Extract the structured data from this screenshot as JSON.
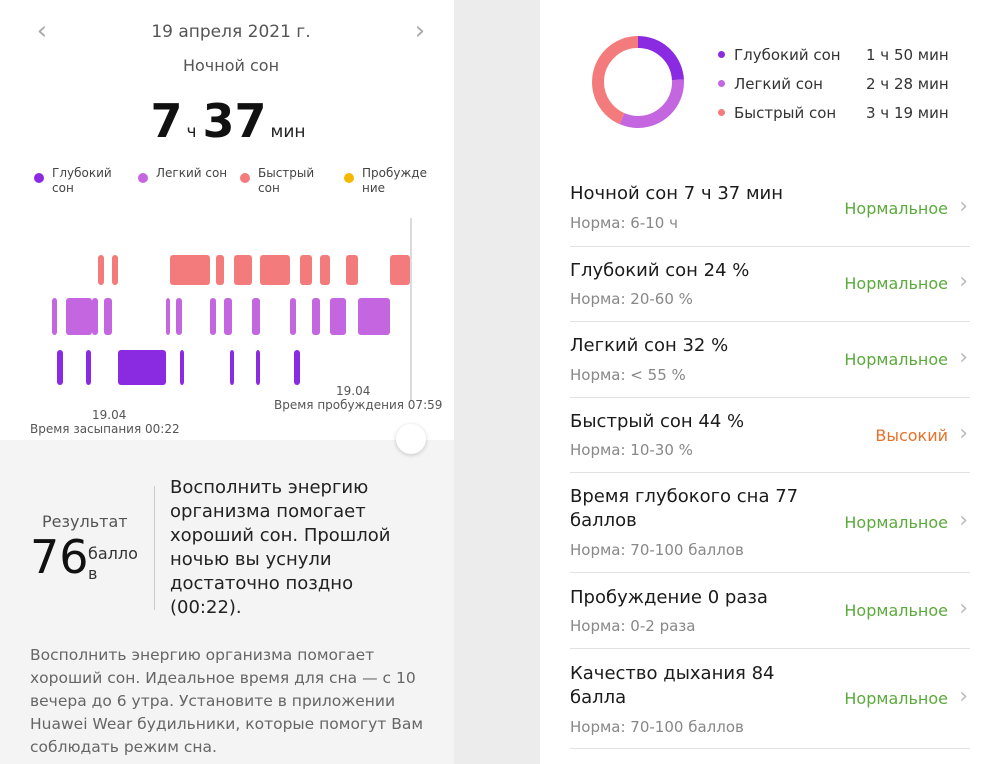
{
  "header": {
    "date": "19 апреля 2021 г.",
    "title": "Ночной сон",
    "hours": "7",
    "hours_unit": "ч",
    "minutes": "37",
    "minutes_unit": "мин"
  },
  "legend": [
    {
      "label": "Глубокий сон",
      "color": "#8a2be2"
    },
    {
      "label": "Легкий сон",
      "color": "#c466e0"
    },
    {
      "label": "Быстрый сон",
      "color": "#f47b7b"
    },
    {
      "label": "Пробужде ние",
      "color": "#f5b800"
    }
  ],
  "chart": {
    "sleep_date": "19.04",
    "sleep_label": "Время засыпания 00:22",
    "wake_date": "19.04",
    "wake_label": "Время пробуждения 07:59"
  },
  "score": {
    "label": "Результат",
    "value": "76",
    "unit": "балло в",
    "text": "Восполнить энергию организма помогает хороший сон. Прошлой ночью вы уснули достаточно поздно (00:22).",
    "advice": "Восполнить энергию организма помогает хороший сон. Идеальное время для сна — с 10 вечера до 6 утра. Установите в приложении Huawei Wear будильники, которые помогут Вам соблюдать режим сна."
  },
  "phases": [
    {
      "name": "Глубокий сон",
      "value": "1 ч 50 мин",
      "color": "#8a2be2"
    },
    {
      "name": "Легкий сон",
      "value": "2 ч 28 мин",
      "color": "#c466e0"
    },
    {
      "name": "Быстрый сон",
      "value": "3 ч 19 мин",
      "color": "#f47b7b"
    }
  ],
  "metrics": [
    {
      "name": "Ночной сон  7 ч 37 мин",
      "norm": "Норма: 6-10 ч",
      "status": "Нормальное",
      "status_color": "#5aaa3c"
    },
    {
      "name": "Глубокий сон  24 %",
      "norm": "Норма: 20-60 %",
      "status": "Нормальное",
      "status_color": "#5aaa3c"
    },
    {
      "name": "Легкий сон  32 %",
      "norm": "Норма: < 55 %",
      "status": "Нормальное",
      "status_color": "#5aaa3c"
    },
    {
      "name": "Быстрый сон  44 %",
      "norm": "Норма: 10-30 %",
      "status": "Высокий",
      "status_color": "#e8722a"
    },
    {
      "name": "Время глубокого сна  77 баллов",
      "norm": "Норма: 70-100 баллов",
      "status": "Нормальное",
      "status_color": "#5aaa3c"
    },
    {
      "name": "Пробуждение  0 раза",
      "norm": "Норма: 0-2 раза",
      "status": "Нормальное",
      "status_color": "#5aaa3c"
    },
    {
      "name": "Качество дыхания  84 балла",
      "norm": "Норма: 70-100 баллов",
      "status": "Нормальное",
      "status_color": "#5aaa3c"
    }
  ]
}
